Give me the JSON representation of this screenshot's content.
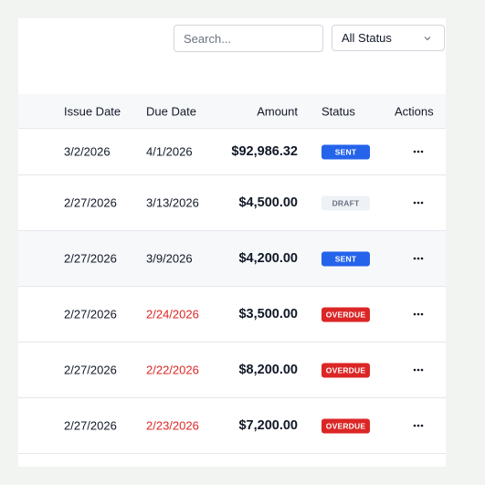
{
  "search": {
    "placeholder": "Search..."
  },
  "status_filter": {
    "value": "All Status"
  },
  "table": {
    "headers": {
      "issue_date": "Issue Date",
      "due_date": "Due Date",
      "amount": "Amount",
      "status": "Status",
      "actions": "Actions"
    },
    "rows": [
      {
        "issue_date": "3/2/2026",
        "due_date": "4/1/2026",
        "amount": "$92,986.32",
        "status": "SENT",
        "status_type": "sent",
        "due_overdue": false
      },
      {
        "issue_date": "2/27/2026",
        "due_date": "3/13/2026",
        "amount": "$4,500.00",
        "status": "DRAFT",
        "status_type": "draft",
        "due_overdue": false
      },
      {
        "issue_date": "2/27/2026",
        "due_date": "3/9/2026",
        "amount": "$4,200.00",
        "status": "SENT",
        "status_type": "sent",
        "due_overdue": false
      },
      {
        "issue_date": "2/27/2026",
        "due_date": "2/24/2026",
        "amount": "$3,500.00",
        "status": "OVERDUE",
        "status_type": "overdue",
        "due_overdue": true
      },
      {
        "issue_date": "2/27/2026",
        "due_date": "2/22/2026",
        "amount": "$8,200.00",
        "status": "OVERDUE",
        "status_type": "overdue",
        "due_overdue": true
      },
      {
        "issue_date": "2/27/2026",
        "due_date": "2/23/2026",
        "amount": "$7,200.00",
        "status": "OVERDUE",
        "status_type": "overdue",
        "due_overdue": true
      }
    ]
  },
  "colors": {
    "sent": "#2563eb",
    "overdue": "#dc2626",
    "draft_bg": "#eef1f5",
    "overdue_text": "#dc2626"
  },
  "icons": {
    "actions": "more-horizontal-icon",
    "select": "chevron-down-icon"
  }
}
